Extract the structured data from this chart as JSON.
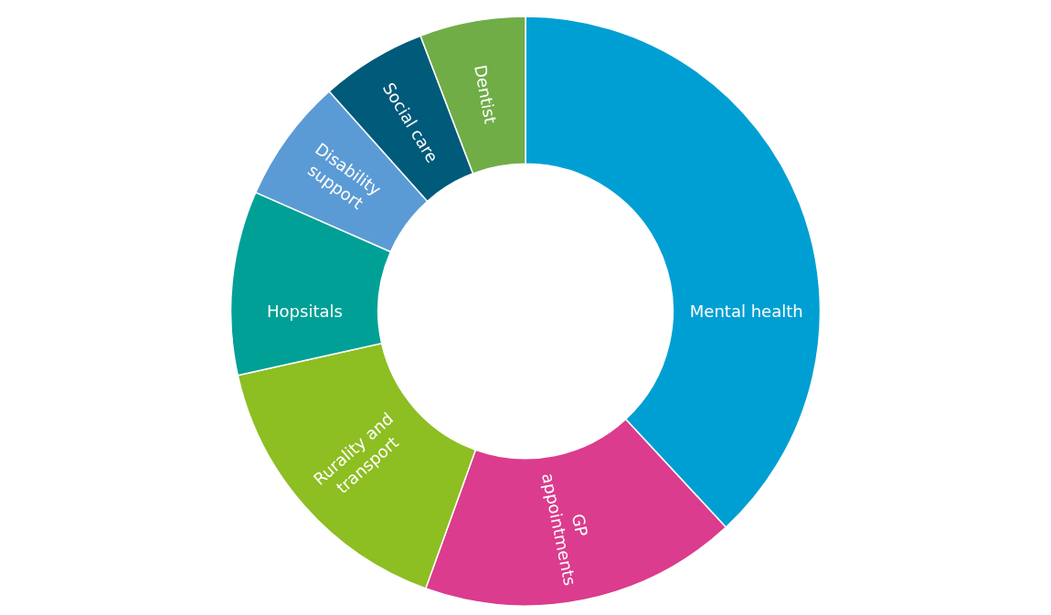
{
  "chart_data": {
    "type": "donut",
    "categories": [
      "Mental health",
      "GP\nappointments",
      "Rurality and\ntransport",
      "Hopsitals",
      "Disability\nsupport",
      "Social care",
      "Dentist"
    ],
    "values": [
      38.1,
      17.4,
      16.0,
      10.1,
      6.8,
      5.8,
      5.8
    ],
    "colors": [
      "#009fd3",
      "#db3c8d",
      "#8dbe22",
      "#00a096",
      "#5b9bd5",
      "#005a7a",
      "#70ad47"
    ],
    "legend": false
  }
}
